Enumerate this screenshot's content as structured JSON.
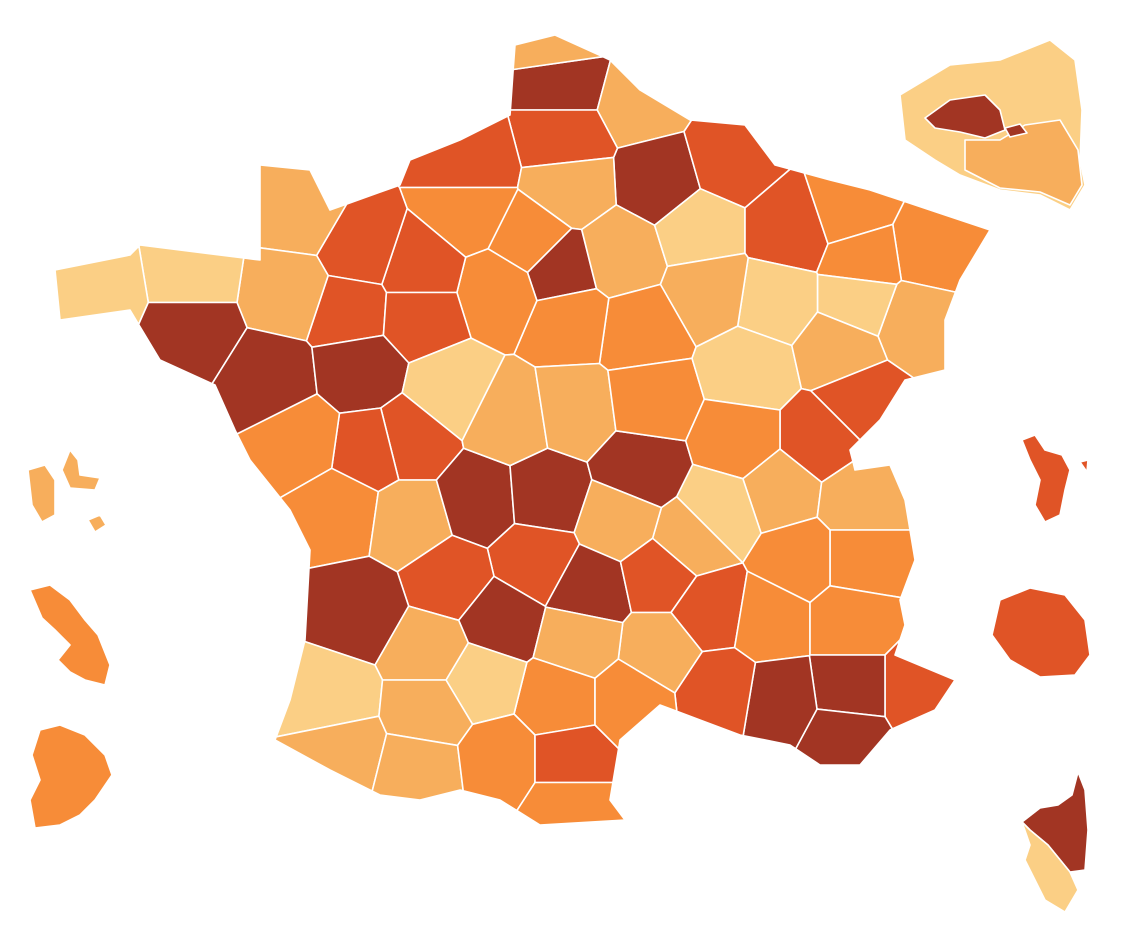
{
  "map": {
    "palette": [
      "#fbcf85",
      "#f7ae5c",
      "#f78c38",
      "#e05426",
      "#a23523"
    ]
  }
}
